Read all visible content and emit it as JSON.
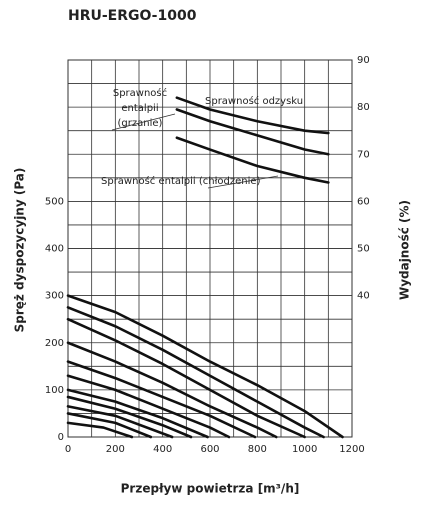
{
  "chart_data": {
    "type": "line",
    "title": "HRU-ERGO-1000",
    "xlabel": "Przepływ powietrza [m³/h]",
    "ylabel": "Spręż dyspozycyjny (Pa)",
    "y2label": "Wydajność (%)",
    "xlim": [
      0,
      1200
    ],
    "xticks": [
      0,
      200,
      400,
      600,
      800,
      1000,
      1200
    ],
    "xminor_ticks": [
      100,
      300,
      500,
      700,
      900,
      1100
    ],
    "ylim": [
      0,
      800
    ],
    "yticks": [
      0,
      100,
      200,
      300,
      400,
      500
    ],
    "yminor_ticks": [
      50,
      150,
      250,
      350,
      450,
      550,
      650,
      750
    ],
    "y2lim": [
      10,
      90
    ],
    "y2ticks": [
      40,
      50,
      60,
      70,
      80,
      90
    ],
    "grid": true,
    "series": [
      {
        "color": "#111111",
        "x": [
          0,
          200,
          400,
          600,
          800,
          1000,
          1160
        ],
        "values": [
          300,
          265,
          215,
          160,
          110,
          55,
          0
        ]
      },
      {
        "color": "#111111",
        "x": [
          0,
          200,
          400,
          600,
          800,
          1000,
          1080
        ],
        "values": [
          275,
          235,
          185,
          130,
          75,
          20,
          0
        ]
      },
      {
        "color": "#111111",
        "x": [
          0,
          200,
          400,
          600,
          800,
          1000
        ],
        "values": [
          250,
          205,
          155,
          100,
          45,
          0
        ]
      },
      {
        "color": "#111111",
        "x": [
          0,
          200,
          400,
          600,
          800,
          880
        ],
        "values": [
          200,
          160,
          115,
          65,
          20,
          0
        ]
      },
      {
        "color": "#111111",
        "x": [
          0,
          200,
          400,
          600,
          790
        ],
        "values": [
          160,
          125,
          85,
          45,
          0
        ]
      },
      {
        "color": "#111111",
        "x": [
          0,
          200,
          400,
          600,
          680
        ],
        "values": [
          130,
          100,
          60,
          20,
          0
        ]
      },
      {
        "color": "#111111",
        "x": [
          0,
          200,
          400,
          590
        ],
        "values": [
          100,
          75,
          40,
          0
        ]
      },
      {
        "color": "#111111",
        "x": [
          0,
          200,
          400,
          520
        ],
        "values": [
          85,
          60,
          25,
          0
        ]
      },
      {
        "color": "#111111",
        "x": [
          0,
          200,
          440
        ],
        "values": [
          65,
          45,
          0
        ]
      },
      {
        "color": "#111111",
        "x": [
          0,
          200,
          350
        ],
        "values": [
          50,
          30,
          0
        ]
      },
      {
        "color": "#111111",
        "x": [
          0,
          150,
          270
        ],
        "values": [
          30,
          20,
          0
        ]
      },
      {
        "name": "Sprawność odzysku",
        "axis": "y2",
        "color": "#111111",
        "x": [
          460,
          600,
          800,
          1000,
          1100
        ],
        "values": [
          82,
          79.5,
          77,
          75,
          74.5
        ]
      },
      {
        "label_lines": [
          "Sprawność",
          "entalpii",
          "(grzanie)"
        ],
        "axis": "y2",
        "color": "#111111",
        "x": [
          460,
          600,
          800,
          1000,
          1100
        ],
        "values": [
          79.5,
          77,
          74,
          71,
          70
        ]
      },
      {
        "name": "Sprawność entalpii (chłodzenie)",
        "axis": "y2",
        "color": "#111111",
        "x": [
          460,
          600,
          800,
          1000,
          1100
        ],
        "values": [
          73.5,
          71,
          67.5,
          65,
          64
        ]
      }
    ]
  }
}
